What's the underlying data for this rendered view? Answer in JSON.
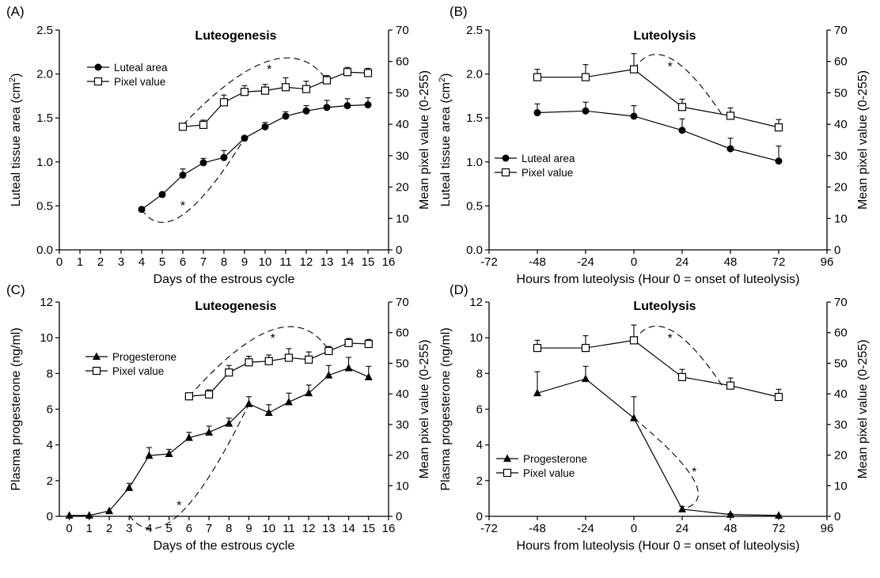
{
  "chart_data": [
    {
      "panel": "(A)",
      "type": "line",
      "title": "Luteogenesis",
      "xlabel": "Days of the estrous cycle",
      "ylabel": "Luteal tissue area (cm2)",
      "y2label": "Mean pixel value (0-255)",
      "xlim": [
        0,
        16
      ],
      "ylim": [
        0,
        2.5
      ],
      "y2lim": [
        0,
        70
      ],
      "x_ticks": [
        "0",
        "1",
        "2",
        "3",
        "4",
        "5",
        "6",
        "7",
        "8",
        "9",
        "10",
        "11",
        "12",
        "13",
        "14",
        "15",
        "16"
      ],
      "y_ticks": [
        "0.0",
        "0.5",
        "1.0",
        "1.5",
        "2.0",
        "2.5"
      ],
      "y2_ticks": [
        "0",
        "10",
        "20",
        "30",
        "40",
        "50",
        "60",
        "70"
      ],
      "legend_position": "top-left",
      "series": [
        {
          "name": "Luteal area",
          "axis": "left",
          "marker": "circle",
          "x": [
            4,
            5,
            6,
            7,
            8,
            9,
            10,
            11,
            12,
            13,
            14,
            15
          ],
          "y": [
            0.46,
            0.63,
            0.85,
            0.99,
            1.05,
            1.27,
            1.4,
            1.52,
            1.58,
            1.62,
            1.64,
            1.65
          ],
          "err": [
            0,
            0,
            0.07,
            0.05,
            0.08,
            0,
            0.05,
            0.05,
            0.06,
            0.08,
            0.08,
            0.08
          ]
        },
        {
          "name": "Pixel value",
          "axis": "right",
          "marker": "square",
          "x": [
            6,
            7,
            8,
            9,
            10,
            11,
            12,
            13,
            14,
            15
          ],
          "y": [
            39.2,
            39.8,
            47.0,
            50.3,
            50.7,
            51.8,
            51.2,
            54.0,
            56.6,
            56.3
          ],
          "err": [
            0,
            1.5,
            2.3,
            2.0,
            2.0,
            3.0,
            2.5,
            1.5,
            1.5,
            1.5
          ]
        }
      ],
      "significance": [
        {
          "label": "*",
          "from_x": 6,
          "from_y": 1.42,
          "peak_x": 10.2,
          "peak_y": 2.15,
          "to_x": 13,
          "to_y": 1.93
        },
        {
          "label": "*",
          "from_x": 4,
          "from_y": 0.46,
          "peak_x": 6,
          "peak_y": 0.4,
          "to_x": 9,
          "to_y": 1.27
        }
      ]
    },
    {
      "panel": "(B)",
      "type": "line",
      "title": "Luteolysis",
      "xlabel": "Hours from luteolysis (Hour 0 = onset of luteolysis)",
      "ylabel": "Luteal tissue area (cm2)",
      "y2label": "Mean pixel value (0-255)",
      "xlim": [
        -72,
        96
      ],
      "ylim": [
        0,
        2.5
      ],
      "y2lim": [
        0,
        70
      ],
      "x_ticks": [
        "-72",
        "-48",
        "-24",
        "0",
        "24",
        "48",
        "72",
        "96"
      ],
      "y_ticks": [
        "0.0",
        "0.5",
        "1.0",
        "1.5",
        "2.0",
        "2.5"
      ],
      "y2_ticks": [
        "0",
        "10",
        "20",
        "30",
        "40",
        "50",
        "60",
        "70"
      ],
      "legend_position": "center-left",
      "series": [
        {
          "name": "Luteal area",
          "axis": "left",
          "marker": "circle",
          "x": [
            -48,
            -24,
            0,
            24,
            48,
            72
          ],
          "y": [
            1.56,
            1.58,
            1.52,
            1.36,
            1.15,
            1.01
          ],
          "err": [
            0.1,
            0.1,
            0.12,
            0.13,
            0.12,
            0.17
          ]
        },
        {
          "name": "Pixel value",
          "axis": "right",
          "marker": "square",
          "x": [
            -48,
            -24,
            0,
            24,
            48,
            72
          ],
          "y": [
            55.0,
            55.0,
            57.5,
            45.5,
            42.7,
            39.0
          ],
          "err": [
            2.5,
            4.0,
            5.0,
            2.5,
            2.5,
            2.5
          ]
        }
      ],
      "significance": [
        {
          "label": "*",
          "from_x": 0,
          "from_y": 2.05,
          "peak_x": 18,
          "peak_y": 2.18,
          "to_x": 44,
          "to_y": 1.53
        }
      ]
    },
    {
      "panel": "(C)",
      "type": "line",
      "title": "Luteogenesis",
      "xlabel": "Days of the estrous cycle",
      "ylabel": "Plasma progesterone (ng/ml)",
      "y2label": "Mean pixel value (0-255)",
      "xlim": [
        -0.5,
        16
      ],
      "ylim": [
        0,
        12
      ],
      "y2lim": [
        0,
        70
      ],
      "x_ticks": [
        "0",
        "1",
        "2",
        "3",
        "4",
        "5",
        "6",
        "7",
        "8",
        "9",
        "10",
        "11",
        "12",
        "13",
        "14",
        "15",
        "16"
      ],
      "y_ticks": [
        "0",
        "2",
        "4",
        "6",
        "8",
        "10",
        "12"
      ],
      "y2_ticks": [
        "0",
        "10",
        "20",
        "30",
        "40",
        "50",
        "60",
        "70"
      ],
      "legend_position": "top-left",
      "series": [
        {
          "name": "Progesterone",
          "axis": "left",
          "marker": "triangle",
          "x": [
            0,
            1,
            2,
            3,
            4,
            5,
            6,
            7,
            8,
            9,
            10,
            11,
            12,
            13,
            14,
            15
          ],
          "y": [
            0.05,
            0.05,
            0.3,
            1.6,
            3.4,
            3.5,
            4.4,
            4.7,
            5.2,
            6.3,
            5.8,
            6.4,
            6.9,
            7.9,
            8.3,
            7.8
          ],
          "err": [
            0,
            0,
            0,
            0.25,
            0.45,
            0.25,
            0.3,
            0.35,
            0.3,
            0.4,
            0.45,
            0.5,
            0.45,
            0.55,
            0.6,
            0.6
          ]
        },
        {
          "name": "Pixel value",
          "axis": "right",
          "marker": "square",
          "x": [
            6,
            7,
            8,
            9,
            10,
            11,
            12,
            13,
            14,
            15
          ],
          "y": [
            39.2,
            39.8,
            47.0,
            50.3,
            50.7,
            51.8,
            51.2,
            54.0,
            56.6,
            56.3
          ],
          "err": [
            0,
            1.5,
            2.3,
            2.0,
            2.0,
            3.0,
            2.5,
            1.5,
            1.5,
            1.5
          ]
        }
      ],
      "significance": [
        {
          "label": "*",
          "from_x": 6,
          "from_y": 6.7,
          "peak_x": 10.2,
          "peak_y": 10.45,
          "to_x": 13,
          "to_y": 9.3
        },
        {
          "label": "*",
          "from_x": 3,
          "from_y": 0.05,
          "peak_x": 5.5,
          "peak_y": 0.1,
          "to_x": 9,
          "to_y": 6.3
        }
      ]
    },
    {
      "panel": "(D)",
      "type": "line",
      "title": "Luteolysis",
      "xlabel": "Hours from luteolysis (Hour 0 = onset of luteolysis)",
      "ylabel": "Plasma progesterone (ng/ml)",
      "y2label": "Mean pixel value (0-255)",
      "xlim": [
        -72,
        96
      ],
      "ylim": [
        0,
        12
      ],
      "y2lim": [
        0,
        70
      ],
      "x_ticks": [
        "-72",
        "-48",
        "-24",
        "0",
        "24",
        "48",
        "72",
        "96"
      ],
      "y_ticks": [
        "0",
        "2",
        "4",
        "6",
        "8",
        "10",
        "12"
      ],
      "y2_ticks": [
        "0",
        "10",
        "20",
        "30",
        "40",
        "50",
        "60",
        "70"
      ],
      "legend_position": "bottom-left",
      "series": [
        {
          "name": "Progesterone",
          "axis": "left",
          "marker": "triangle",
          "x": [
            -48,
            -24,
            0,
            24,
            48,
            72
          ],
          "y": [
            6.9,
            7.7,
            5.5,
            0.4,
            0.1,
            0.05
          ],
          "err": [
            1.2,
            0.7,
            1.2,
            0.15,
            0.05,
            0.02
          ]
        },
        {
          "name": "Pixel value",
          "axis": "right",
          "marker": "square",
          "x": [
            -48,
            -24,
            0,
            24,
            48,
            72
          ],
          "y": [
            55.0,
            55.0,
            57.5,
            45.5,
            42.7,
            39.0
          ],
          "err": [
            2.5,
            4.0,
            5.0,
            2.5,
            2.5,
            2.5
          ]
        }
      ],
      "significance": [
        {
          "label": "*",
          "from_x": 0,
          "from_y": 9.8,
          "peak_x": 18,
          "peak_y": 10.45,
          "to_x": 44,
          "to_y": 7.3
        },
        {
          "label": "*",
          "from_x": 0,
          "from_y": 5.5,
          "peak_x": 30,
          "peak_y": 2.0,
          "to_x": 24,
          "to_y": 0.4
        }
      ]
    }
  ]
}
